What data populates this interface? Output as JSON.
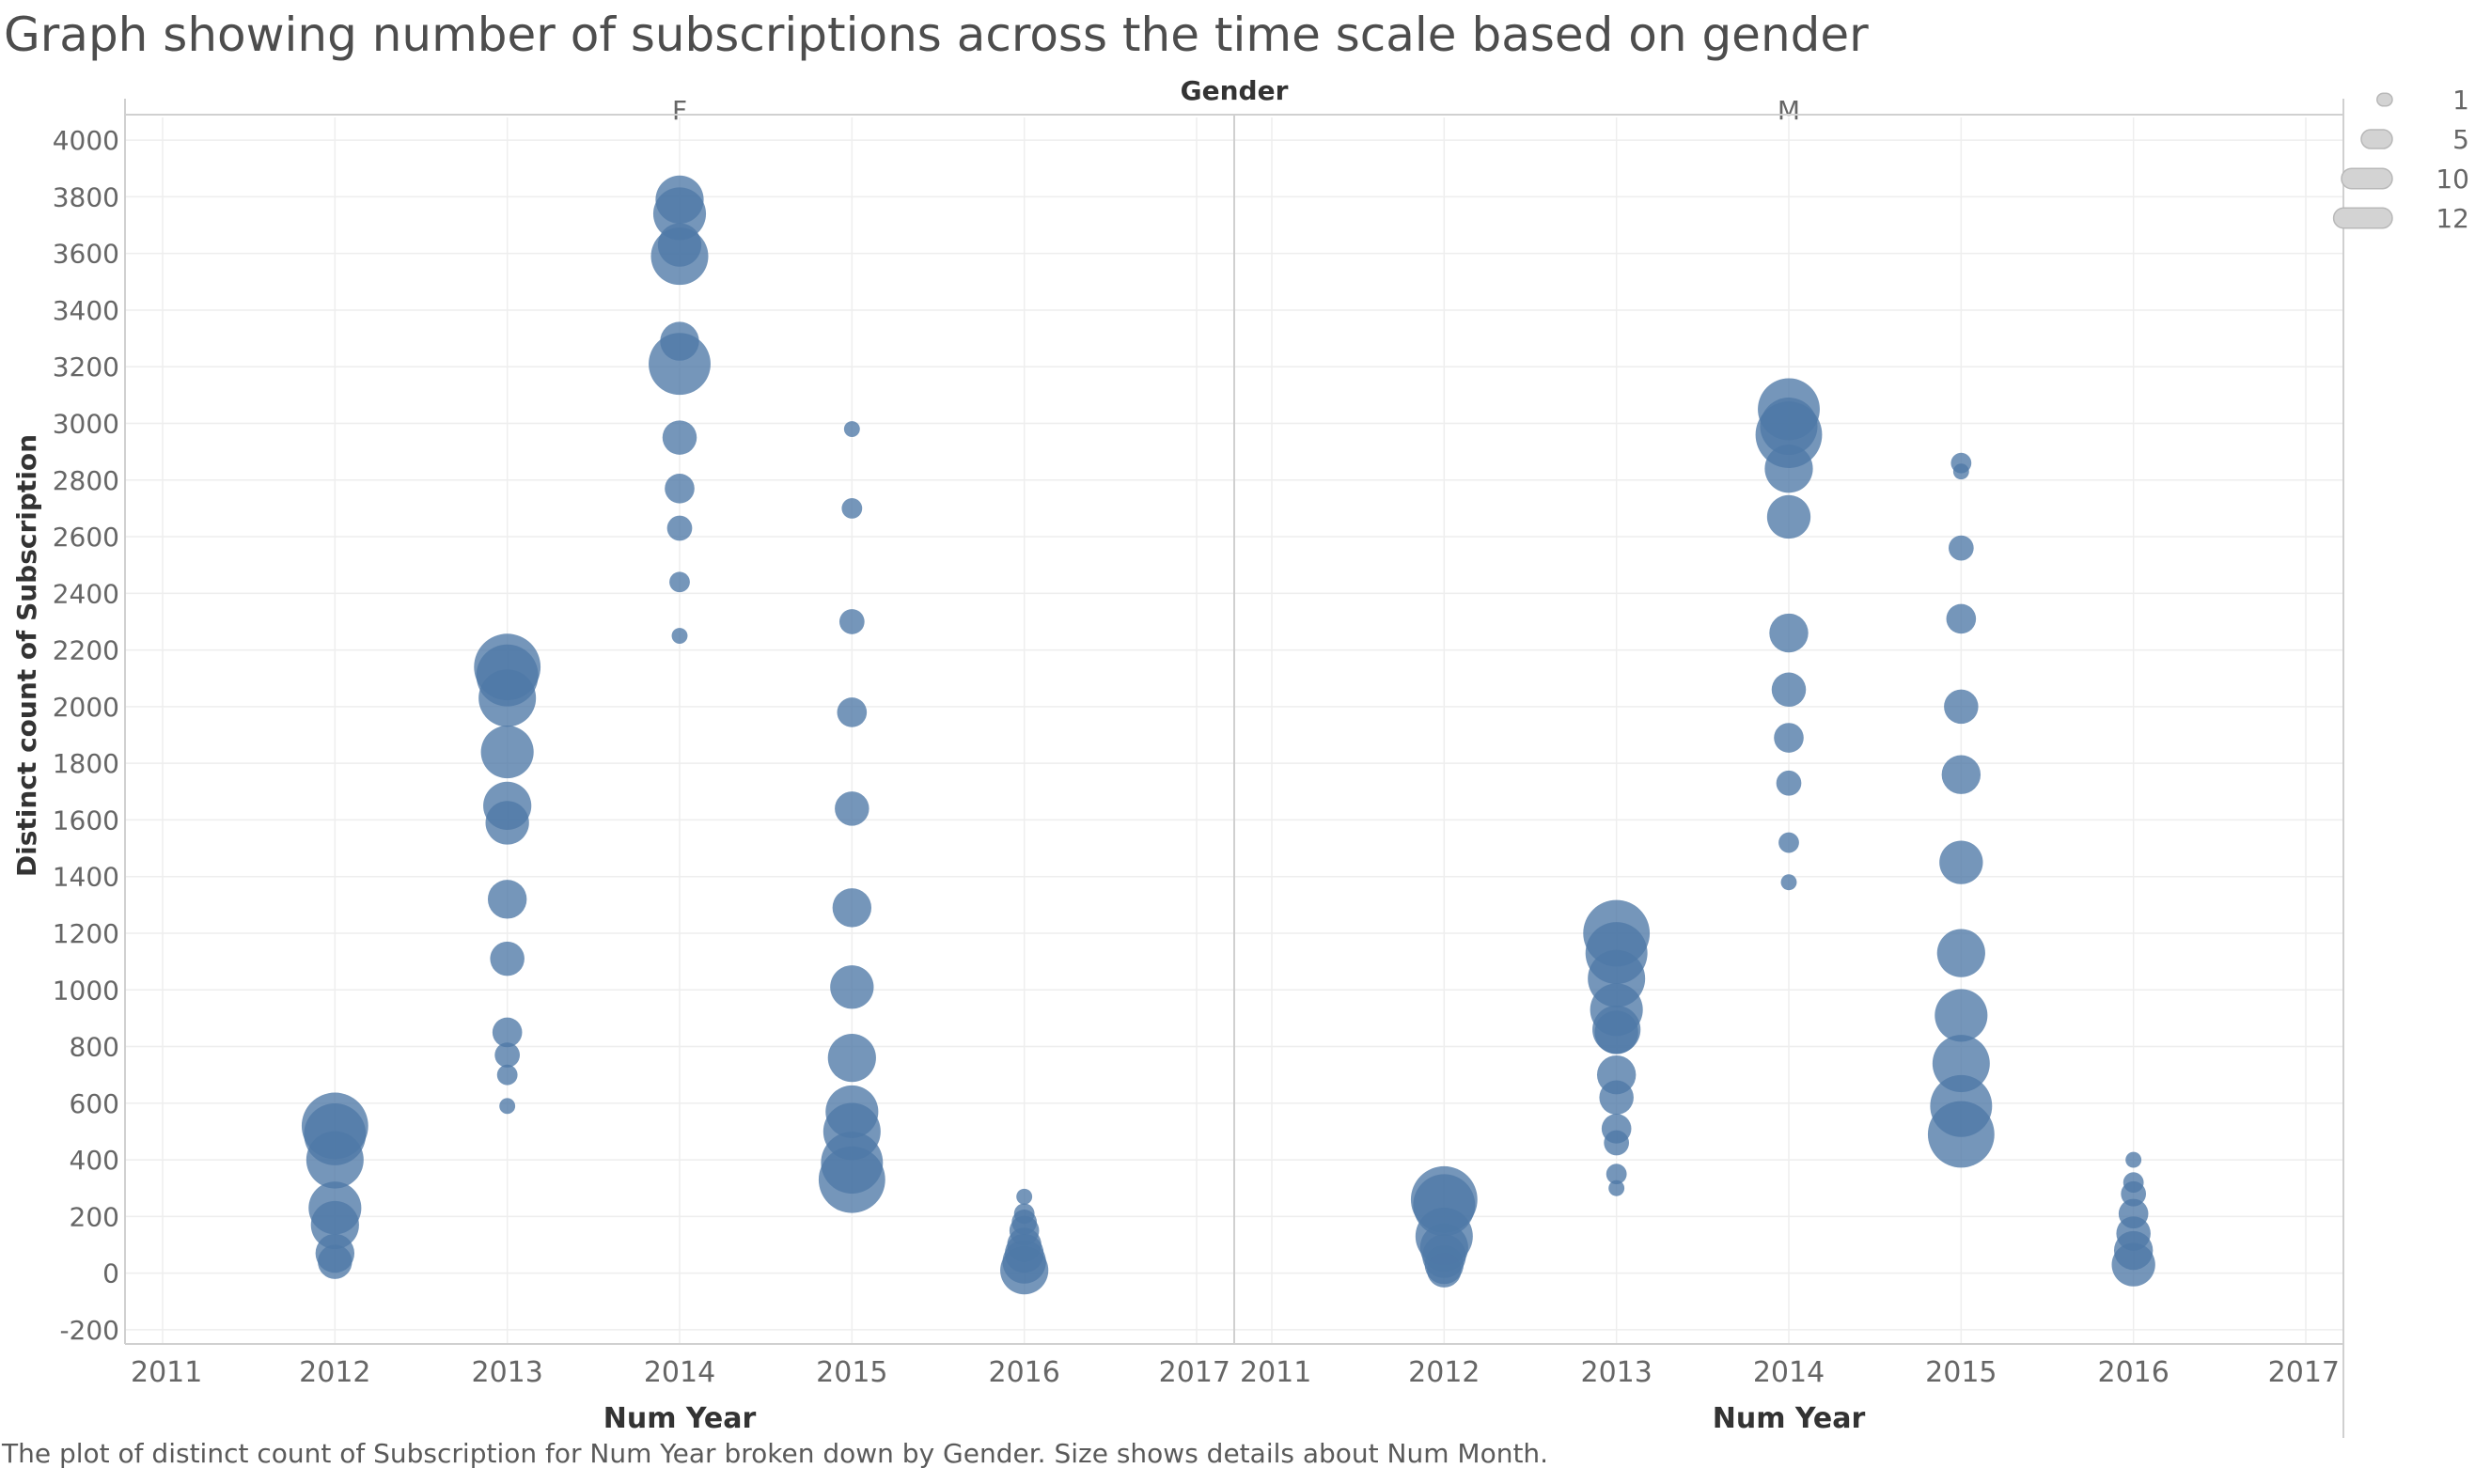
{
  "title": "Graph showing number of subscriptions across the time scale based on gender",
  "caption": "The plot of distinct count of Subscription for Num Year broken down by Gender.  Size shows details about Num Month.",
  "colors": {
    "mark": "#4e79a7",
    "grid": "#eeeeee",
    "axis": "#d0d0d0"
  },
  "chart_data": {
    "type": "scatter",
    "title": "Graph showing number of subscriptions across the time scale based on gender",
    "column_header": "Gender",
    "panels": [
      "F",
      "M"
    ],
    "xlabel": "Num Year",
    "ylabel": "Distinct count of Subscription",
    "xlim": [
      2011,
      2017
    ],
    "x_ticks": [
      2011,
      2012,
      2013,
      2014,
      2015,
      2016,
      2017
    ],
    "ylim": [
      -250,
      4080
    ],
    "y_ticks": [
      -200,
      0,
      200,
      400,
      600,
      800,
      1000,
      1200,
      1400,
      1600,
      1800,
      2000,
      2200,
      2400,
      2600,
      2800,
      3000,
      3200,
      3400,
      3600,
      3800,
      4000
    ],
    "grid": true,
    "size_legend": {
      "field": "Num Month",
      "values": [
        1,
        5,
        10,
        12
      ],
      "placement": "top-right"
    },
    "series": [
      {
        "panel": "F",
        "points": [
          {
            "x": 2012,
            "y": 520,
            "size": 12
          },
          {
            "x": 2012,
            "y": 490,
            "size": 11
          },
          {
            "x": 2012,
            "y": 400,
            "size": 10
          },
          {
            "x": 2012,
            "y": 230,
            "size": 9
          },
          {
            "x": 2012,
            "y": 170,
            "size": 8
          },
          {
            "x": 2012,
            "y": 70,
            "size": 6
          },
          {
            "x": 2012,
            "y": 40,
            "size": 5
          },
          {
            "x": 2013,
            "y": 2140,
            "size": 12
          },
          {
            "x": 2013,
            "y": 2110,
            "size": 11
          },
          {
            "x": 2013,
            "y": 2030,
            "size": 10
          },
          {
            "x": 2013,
            "y": 1840,
            "size": 9
          },
          {
            "x": 2013,
            "y": 1650,
            "size": 8
          },
          {
            "x": 2013,
            "y": 1590,
            "size": 7
          },
          {
            "x": 2013,
            "y": 1320,
            "size": 6
          },
          {
            "x": 2013,
            "y": 1110,
            "size": 5
          },
          {
            "x": 2013,
            "y": 850,
            "size": 4
          },
          {
            "x": 2013,
            "y": 770,
            "size": 3
          },
          {
            "x": 2013,
            "y": 700,
            "size": 2
          },
          {
            "x": 2013,
            "y": 590,
            "size": 1
          },
          {
            "x": 2014,
            "y": 3790,
            "size": 8
          },
          {
            "x": 2014,
            "y": 3740,
            "size": 9
          },
          {
            "x": 2014,
            "y": 3630,
            "size": 7
          },
          {
            "x": 2014,
            "y": 3590,
            "size": 10
          },
          {
            "x": 2014,
            "y": 3290,
            "size": 6
          },
          {
            "x": 2014,
            "y": 3210,
            "size": 11
          },
          {
            "x": 2014,
            "y": 2950,
            "size": 5
          },
          {
            "x": 2014,
            "y": 2770,
            "size": 4
          },
          {
            "x": 2014,
            "y": 2630,
            "size": 3
          },
          {
            "x": 2014,
            "y": 2440,
            "size": 2
          },
          {
            "x": 2014,
            "y": 2250,
            "size": 1
          },
          {
            "x": 2015,
            "y": 2980,
            "size": 1
          },
          {
            "x": 2015,
            "y": 2700,
            "size": 2
          },
          {
            "x": 2015,
            "y": 2300,
            "size": 3
          },
          {
            "x": 2015,
            "y": 1980,
            "size": 4
          },
          {
            "x": 2015,
            "y": 1640,
            "size": 5
          },
          {
            "x": 2015,
            "y": 1290,
            "size": 6
          },
          {
            "x": 2015,
            "y": 1010,
            "size": 7
          },
          {
            "x": 2015,
            "y": 760,
            "size": 8
          },
          {
            "x": 2015,
            "y": 570,
            "size": 9
          },
          {
            "x": 2015,
            "y": 500,
            "size": 10
          },
          {
            "x": 2015,
            "y": 390,
            "size": 11
          },
          {
            "x": 2015,
            "y": 330,
            "size": 12
          },
          {
            "x": 2016,
            "y": 270,
            "size": 1
          },
          {
            "x": 2016,
            "y": 210,
            "size": 2
          },
          {
            "x": 2016,
            "y": 180,
            "size": 3
          },
          {
            "x": 2016,
            "y": 150,
            "size": 4
          },
          {
            "x": 2016,
            "y": 100,
            "size": 5
          },
          {
            "x": 2016,
            "y": 70,
            "size": 6
          },
          {
            "x": 2016,
            "y": 40,
            "size": 7
          },
          {
            "x": 2016,
            "y": 10,
            "size": 8
          }
        ]
      },
      {
        "panel": "M",
        "points": [
          {
            "x": 2012,
            "y": 260,
            "size": 12
          },
          {
            "x": 2012,
            "y": 240,
            "size": 11
          },
          {
            "x": 2012,
            "y": 130,
            "size": 10
          },
          {
            "x": 2012,
            "y": 90,
            "size": 8
          },
          {
            "x": 2012,
            "y": 60,
            "size": 7
          },
          {
            "x": 2012,
            "y": 30,
            "size": 6
          },
          {
            "x": 2012,
            "y": 10,
            "size": 5
          },
          {
            "x": 2013,
            "y": 1200,
            "size": 12
          },
          {
            "x": 2013,
            "y": 1130,
            "size": 11
          },
          {
            "x": 2013,
            "y": 1040,
            "size": 10
          },
          {
            "x": 2013,
            "y": 930,
            "size": 9
          },
          {
            "x": 2013,
            "y": 860,
            "size": 8
          },
          {
            "x": 2013,
            "y": 850,
            "size": 7
          },
          {
            "x": 2013,
            "y": 700,
            "size": 6
          },
          {
            "x": 2013,
            "y": 620,
            "size": 5
          },
          {
            "x": 2013,
            "y": 510,
            "size": 4
          },
          {
            "x": 2013,
            "y": 460,
            "size": 3
          },
          {
            "x": 2013,
            "y": 350,
            "size": 2
          },
          {
            "x": 2013,
            "y": 300,
            "size": 1
          },
          {
            "x": 2014,
            "y": 3050,
            "size": 11
          },
          {
            "x": 2014,
            "y": 2990,
            "size": 10
          },
          {
            "x": 2014,
            "y": 2960,
            "size": 12
          },
          {
            "x": 2014,
            "y": 2840,
            "size": 8
          },
          {
            "x": 2014,
            "y": 2670,
            "size": 7
          },
          {
            "x": 2014,
            "y": 2260,
            "size": 6
          },
          {
            "x": 2014,
            "y": 2060,
            "size": 5
          },
          {
            "x": 2014,
            "y": 1890,
            "size": 4
          },
          {
            "x": 2014,
            "y": 1730,
            "size": 3
          },
          {
            "x": 2014,
            "y": 1520,
            "size": 2
          },
          {
            "x": 2014,
            "y": 1380,
            "size": 1
          },
          {
            "x": 2015,
            "y": 2860,
            "size": 2
          },
          {
            "x": 2015,
            "y": 2830,
            "size": 1
          },
          {
            "x": 2015,
            "y": 2560,
            "size": 3
          },
          {
            "x": 2015,
            "y": 2310,
            "size": 4
          },
          {
            "x": 2015,
            "y": 2000,
            "size": 5
          },
          {
            "x": 2015,
            "y": 1760,
            "size": 6
          },
          {
            "x": 2015,
            "y": 1450,
            "size": 7
          },
          {
            "x": 2015,
            "y": 1130,
            "size": 8
          },
          {
            "x": 2015,
            "y": 910,
            "size": 9
          },
          {
            "x": 2015,
            "y": 740,
            "size": 10
          },
          {
            "x": 2015,
            "y": 590,
            "size": 11
          },
          {
            "x": 2015,
            "y": 490,
            "size": 12
          },
          {
            "x": 2016,
            "y": 400,
            "size": 1
          },
          {
            "x": 2016,
            "y": 320,
            "size": 2
          },
          {
            "x": 2016,
            "y": 280,
            "size": 3
          },
          {
            "x": 2016,
            "y": 210,
            "size": 4
          },
          {
            "x": 2016,
            "y": 140,
            "size": 5
          },
          {
            "x": 2016,
            "y": 80,
            "size": 6
          },
          {
            "x": 2016,
            "y": 30,
            "size": 7
          }
        ]
      }
    ]
  }
}
